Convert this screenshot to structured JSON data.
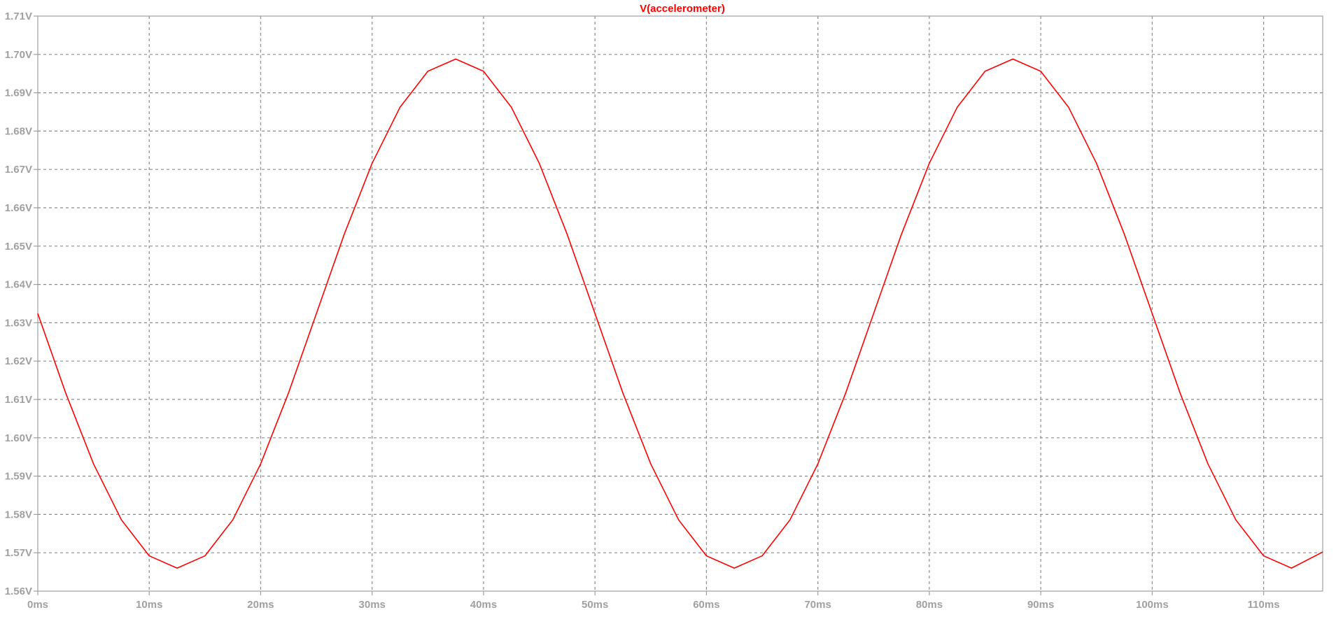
{
  "chart_data": {
    "type": "line",
    "title": "V(accelerometer)",
    "xlabel": "",
    "ylabel": "",
    "x_unit": "ms",
    "y_unit": "V",
    "xlim": [
      0,
      115.3
    ],
    "ylim": [
      1.56,
      1.71
    ],
    "x_ticks": [
      0,
      10,
      20,
      30,
      40,
      50,
      60,
      70,
      80,
      90,
      100,
      110
    ],
    "x_tick_labels": [
      "0ms",
      "10ms",
      "20ms",
      "30ms",
      "40ms",
      "50ms",
      "60ms",
      "70ms",
      "80ms",
      "90ms",
      "100ms",
      "110ms"
    ],
    "y_ticks": [
      1.56,
      1.57,
      1.58,
      1.59,
      1.6,
      1.61,
      1.62,
      1.63,
      1.64,
      1.65,
      1.66,
      1.67,
      1.68,
      1.69,
      1.7,
      1.71
    ],
    "y_tick_labels": [
      "1.56V",
      "1.57V",
      "1.58V",
      "1.59V",
      "1.60V",
      "1.61V",
      "1.62V",
      "1.63V",
      "1.64V",
      "1.65V",
      "1.66V",
      "1.67V",
      "1.68V",
      "1.69V",
      "1.70V",
      "1.71V"
    ],
    "grid": true,
    "series": [
      {
        "name": "V(accelerometer)",
        "color": "#ff0000",
        "x": [
          0,
          2.5,
          5,
          7.5,
          10,
          12.5,
          15,
          17.5,
          20,
          22.5,
          25,
          27.5,
          30,
          32.5,
          35,
          37.5,
          40,
          42.5,
          45,
          47.5,
          50,
          52.5,
          55,
          57.5,
          60,
          62.5,
          65,
          67.5,
          70,
          72.5,
          75,
          77.5,
          80,
          82.5,
          85,
          87.5,
          90,
          92.5,
          95,
          97.5,
          100,
          102.5,
          105,
          107.5,
          110,
          112.5,
          115.3
        ],
        "y": [
          1.6324,
          1.6117,
          1.5932,
          1.5786,
          1.5692,
          1.566,
          1.5692,
          1.5786,
          1.5932,
          1.6117,
          1.6324,
          1.6531,
          1.6716,
          1.6862,
          1.6956,
          1.6988,
          1.6956,
          1.6862,
          1.6716,
          1.6531,
          1.6324,
          1.6117,
          1.5932,
          1.5786,
          1.5692,
          1.566,
          1.5692,
          1.5786,
          1.5932,
          1.6117,
          1.6324,
          1.6531,
          1.6716,
          1.6862,
          1.6956,
          1.6988,
          1.6956,
          1.6862,
          1.6716,
          1.6531,
          1.6324,
          1.6117,
          1.5932,
          1.5786,
          1.5692,
          1.566,
          1.5702
        ]
      }
    ]
  }
}
